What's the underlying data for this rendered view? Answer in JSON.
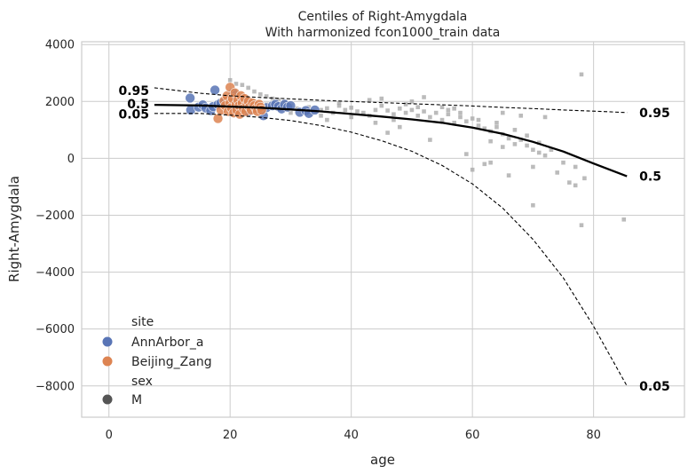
{
  "chart_data": {
    "type": "scatter",
    "title": "Centiles of Right-Amygdala",
    "subtitle": "With harmonized fcon1000_train data",
    "xlabel": "age",
    "ylabel": "Right-Amygdala",
    "xlim": [
      -4.5,
      95
    ],
    "ylim": [
      -9100,
      4100
    ],
    "x_ticks": [
      0,
      20,
      40,
      60,
      80
    ],
    "y_ticks": [
      4000,
      2000,
      0,
      -2000,
      -4000,
      -6000,
      -8000
    ],
    "grid": true,
    "legend_position": "lower-left",
    "legend": {
      "site_title": "site",
      "sites": [
        {
          "name": "AnnArbor_a",
          "color": "#5975b6"
        },
        {
          "name": "Beijing_Zang",
          "color": "#dd8452"
        }
      ],
      "sex_title": "sex",
      "sexes": [
        {
          "name": "M",
          "color": "#555555"
        }
      ]
    },
    "centiles": [
      {
        "label": "0.95",
        "style": "dashed",
        "x": [
          7.5,
          15,
          20,
          25,
          30,
          35,
          40,
          45,
          50,
          55,
          60,
          65,
          70,
          75,
          80,
          85.5
        ],
        "y": [
          2480,
          2290,
          2200,
          2140,
          2090,
          2040,
          2000,
          1960,
          1920,
          1880,
          1840,
          1790,
          1750,
          1700,
          1660,
          1610
        ]
      },
      {
        "label": "0.5",
        "style": "solid",
        "x": [
          7.5,
          15,
          20,
          25,
          30,
          35,
          40,
          45,
          50,
          55,
          60,
          65,
          70,
          75,
          80,
          85.5
        ],
        "y": [
          1880,
          1860,
          1820,
          1780,
          1720,
          1650,
          1560,
          1470,
          1370,
          1250,
          1080,
          860,
          580,
          240,
          -180,
          -630
        ]
      },
      {
        "label": "0.05",
        "style": "dashed",
        "x": [
          7.5,
          15,
          20,
          25,
          30,
          35,
          40,
          45,
          50,
          55,
          60,
          65,
          70,
          75,
          80,
          85.5
        ],
        "y": [
          1580,
          1580,
          1520,
          1440,
          1330,
          1150,
          920,
          620,
          250,
          -250,
          -900,
          -1750,
          -2850,
          -4200,
          -5900,
          -8000
        ]
      }
    ],
    "centile_labels_left": [
      "0.95",
      "0.5",
      "0.05"
    ],
    "centile_labels_right": [
      "0.95",
      "0.5",
      "0.05"
    ],
    "series": [
      {
        "name": "AnnArbor_a",
        "color": "#5975b6",
        "points": [
          [
            13.4,
            2120
          ],
          [
            13.5,
            1700
          ],
          [
            14.8,
            1800
          ],
          [
            15.5,
            1880
          ],
          [
            16,
            1770
          ],
          [
            16.8,
            1680
          ],
          [
            17.2,
            1820
          ],
          [
            17.5,
            2400
          ],
          [
            18,
            1890
          ],
          [
            18.5,
            1950
          ],
          [
            19.5,
            1850
          ],
          [
            20.5,
            2300
          ],
          [
            21,
            1710
          ],
          [
            23,
            1640
          ],
          [
            25.5,
            1500
          ],
          [
            26,
            1780
          ],
          [
            27,
            1850
          ],
          [
            27.5,
            1900
          ],
          [
            28,
            1820
          ],
          [
            28.5,
            1740
          ],
          [
            29,
            1900
          ],
          [
            29.5,
            1800
          ],
          [
            30,
            1850
          ],
          [
            31.5,
            1620
          ],
          [
            32.5,
            1680
          ],
          [
            33,
            1580
          ],
          [
            34,
            1700
          ]
        ]
      },
      {
        "name": "Beijing_Zang",
        "color": "#dd8452",
        "points": [
          [
            18,
            1400
          ],
          [
            18.5,
            1700
          ],
          [
            19,
            2020
          ],
          [
            19.2,
            1850
          ],
          [
            19.5,
            2200
          ],
          [
            19.7,
            1650
          ],
          [
            20,
            2500
          ],
          [
            20,
            1950
          ],
          [
            20.2,
            1780
          ],
          [
            20.4,
            2100
          ],
          [
            20.6,
            1600
          ],
          [
            20.8,
            2300
          ],
          [
            21,
            1900
          ],
          [
            21.1,
            1700
          ],
          [
            21.3,
            2050
          ],
          [
            21.5,
            1850
          ],
          [
            21.6,
            1550
          ],
          [
            21.8,
            2200
          ],
          [
            22,
            1950
          ],
          [
            22.2,
            1750
          ],
          [
            22.4,
            2100
          ],
          [
            22.6,
            1650
          ],
          [
            22.8,
            1900
          ],
          [
            23,
            2000
          ],
          [
            23.2,
            1800
          ],
          [
            23.5,
            1700
          ],
          [
            23.7,
            1950
          ],
          [
            24,
            1850
          ],
          [
            24.3,
            1750
          ],
          [
            24.5,
            1650
          ],
          [
            24.8,
            1900
          ],
          [
            25,
            1800
          ],
          [
            25.2,
            1700
          ]
        ]
      },
      {
        "name": "train",
        "color": "#aaaaaa",
        "points": [
          [
            20,
            2750
          ],
          [
            21,
            2620
          ],
          [
            22,
            2580
          ],
          [
            23,
            2480
          ],
          [
            24,
            2350
          ],
          [
            25,
            2250
          ],
          [
            26,
            2180
          ],
          [
            27,
            2100
          ],
          [
            28,
            2050
          ],
          [
            29,
            1980
          ],
          [
            30,
            1850
          ],
          [
            31,
            1750
          ],
          [
            32,
            1700
          ],
          [
            33,
            1800
          ],
          [
            34,
            1650
          ],
          [
            35,
            1700
          ],
          [
            36,
            1760
          ],
          [
            37,
            1600
          ],
          [
            38,
            1850
          ],
          [
            39,
            1700
          ],
          [
            40,
            1780
          ],
          [
            41,
            1650
          ],
          [
            42,
            1600
          ],
          [
            43,
            1500
          ],
          [
            44,
            1700
          ],
          [
            45,
            1850
          ],
          [
            46,
            1680
          ],
          [
            47,
            1550
          ],
          [
            48,
            1750
          ],
          [
            49,
            1600
          ],
          [
            50,
            1700
          ],
          [
            51,
            1500
          ],
          [
            52,
            1650
          ],
          [
            53,
            1450
          ],
          [
            54,
            1600
          ],
          [
            55,
            1350
          ],
          [
            56,
            1550
          ],
          [
            57,
            1250
          ],
          [
            58,
            1450
          ],
          [
            59,
            1300
          ],
          [
            60,
            1400
          ],
          [
            61,
            1150
          ],
          [
            62,
            1050
          ],
          [
            63,
            950
          ],
          [
            64,
            1100
          ],
          [
            65,
            850
          ],
          [
            66,
            700
          ],
          [
            67,
            500
          ],
          [
            68,
            650
          ],
          [
            69,
            450
          ],
          [
            70,
            300
          ],
          [
            71,
            200
          ],
          [
            72,
            100
          ],
          [
            75,
            -150
          ],
          [
            76,
            -850
          ],
          [
            77,
            -950
          ],
          [
            78,
            -2350
          ],
          [
            78,
            2950
          ],
          [
            78.5,
            -700
          ],
          [
            63,
            -150
          ],
          [
            60,
            -400
          ],
          [
            70,
            -1650
          ],
          [
            85,
            -2150
          ],
          [
            43,
            2050
          ],
          [
            38,
            1950
          ],
          [
            50,
            2000
          ],
          [
            55,
            1800
          ],
          [
            52,
            2150
          ],
          [
            57,
            1750
          ],
          [
            65,
            1600
          ],
          [
            68,
            1500
          ],
          [
            72,
            1450
          ],
          [
            44,
            1250
          ],
          [
            48,
            1100
          ],
          [
            46,
            900
          ],
          [
            66,
            -600
          ],
          [
            62,
            -200
          ],
          [
            59,
            150
          ],
          [
            53,
            650
          ],
          [
            47,
            1350
          ],
          [
            36,
            1350
          ],
          [
            40,
            1450
          ],
          [
            35,
            1500
          ],
          [
            30,
            1600
          ],
          [
            28,
            1750
          ],
          [
            26,
            1900
          ],
          [
            24,
            2000
          ],
          [
            22,
            2150
          ],
          [
            21,
            2300
          ],
          [
            45,
            2100
          ],
          [
            49,
            1900
          ],
          [
            51,
            1800
          ],
          [
            56,
            1700
          ],
          [
            58,
            1600
          ],
          [
            61,
            1350
          ],
          [
            64,
            1250
          ],
          [
            67,
            1000
          ],
          [
            69,
            800
          ],
          [
            71,
            550
          ],
          [
            73,
            300
          ],
          [
            65,
            400
          ],
          [
            63,
            600
          ],
          [
            70,
            -300
          ],
          [
            74,
            -500
          ],
          [
            77,
            -300
          ]
        ]
      }
    ]
  }
}
